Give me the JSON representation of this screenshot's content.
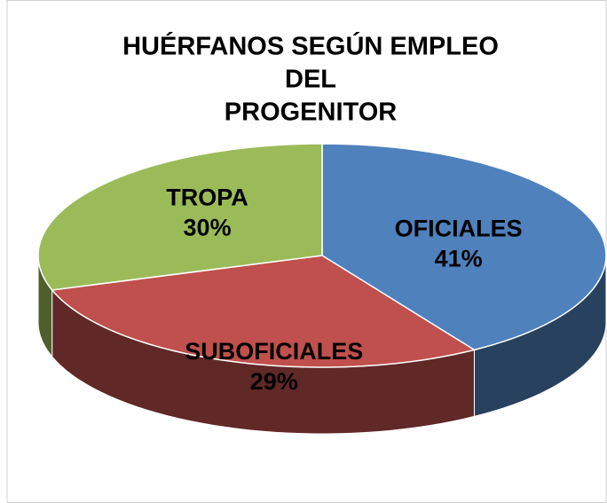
{
  "chart_data": {
    "type": "pie",
    "title": [
      "HUÉRFANOS SEGÚN EMPLEO",
      "DEL",
      "PROGENITOR"
    ],
    "categories": [
      "OFICIALES",
      "SUBOFICIALES",
      "TROPA"
    ],
    "values": [
      41,
      29,
      30
    ],
    "value_labels": [
      "41%",
      "29%",
      "30%"
    ],
    "colors": [
      "#4f81bd",
      "#c0504d",
      "#9bbb59"
    ]
  }
}
